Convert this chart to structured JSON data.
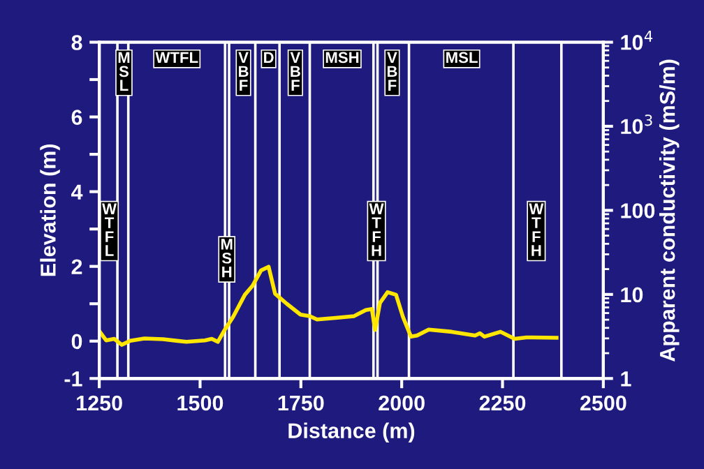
{
  "chart_data": {
    "type": "line",
    "xlabel": "Distance (m)",
    "ylabel": "Elevation (m)",
    "y2label": "Apparent conductivity (mS/m)",
    "x": [
      1252,
      1267,
      1287,
      1306,
      1327,
      1362,
      1408,
      1466,
      1512,
      1529,
      1544,
      1561,
      1582,
      1611,
      1630,
      1651,
      1670,
      1686,
      1715,
      1749,
      1772,
      1790,
      1836,
      1882,
      1911,
      1926,
      1934,
      1946,
      1965,
      1986,
      2003,
      2023,
      2038,
      2067,
      2124,
      2182,
      2194,
      2205,
      2245,
      2280,
      2309,
      2384
    ],
    "series": [
      {
        "color": "#ffe600",
        "values": [
          0.24,
          0.02,
          0.06,
          -0.1,
          0.01,
          0.07,
          0.05,
          -0.02,
          0.02,
          0.06,
          -0.02,
          0.3,
          0.65,
          1.24,
          1.48,
          1.89,
          1.99,
          1.27,
          1.0,
          0.71,
          0.67,
          0.58,
          0.62,
          0.67,
          0.83,
          0.86,
          0.3,
          1.02,
          1.31,
          1.24,
          0.65,
          0.12,
          0.15,
          0.31,
          0.25,
          0.15,
          0.21,
          0.12,
          0.25,
          0.06,
          0.1,
          0.09
        ]
      }
    ],
    "xlim": [
      1250,
      2500
    ],
    "xticks": [
      1250,
      1500,
      1750,
      2000,
      2250,
      2500
    ],
    "ylim": [
      -1,
      8
    ],
    "yticks": [
      -1,
      0,
      {
        "value": 1,
        "label": null
      },
      2,
      {
        "value": 3,
        "label": null
      },
      4,
      {
        "value": 5,
        "label": null
      },
      6,
      {
        "value": 7,
        "label": null
      },
      8
    ],
    "y2lim": [
      1,
      10000
    ],
    "y2ticks": [
      1,
      10,
      100,
      {
        "value": 1000,
        "label": "10$^{3}$"
      },
      {
        "value": 10000,
        "label": "10$^{4}$"
      }
    ],
    "log": "y2",
    "ref_lines": [
      {
        "axis": "x",
        "value": 1295,
        "color": "#ffffff"
      },
      {
        "axis": "x",
        "value": 1322,
        "color": "#ffffff"
      },
      {
        "axis": "x",
        "value": 1562,
        "color": "#ffffff"
      },
      {
        "axis": "x",
        "value": 1572,
        "color": "#ffffff"
      },
      {
        "axis": "x",
        "value": 1637,
        "color": "#ffffff"
      },
      {
        "axis": "x",
        "value": 1697,
        "color": "#ffffff"
      },
      {
        "axis": "x",
        "value": 1772,
        "color": "#ffffff"
      },
      {
        "axis": "x",
        "value": 1930,
        "color": "#ffffff"
      },
      {
        "axis": "x",
        "value": 1940,
        "color": "#ffffff"
      },
      {
        "axis": "x",
        "value": 2018,
        "color": "#ffffff"
      },
      {
        "axis": "x",
        "value": 2277,
        "color": "#ffffff"
      },
      {
        "axis": "x",
        "value": 2396,
        "color": "#ffffff"
      }
    ],
    "annotations": [
      "W\nT\nF\nL",
      "M\nS\nL",
      "WTFL",
      "M\nS\nH",
      "V\nB\nF",
      "D",
      "V\nB\nF",
      "MSH",
      "W\nT\nF\nH",
      "V\nB\nF",
      "MSL",
      "W\nT\nF\nH"
    ],
    "grid": false,
    "legend": false
  }
}
